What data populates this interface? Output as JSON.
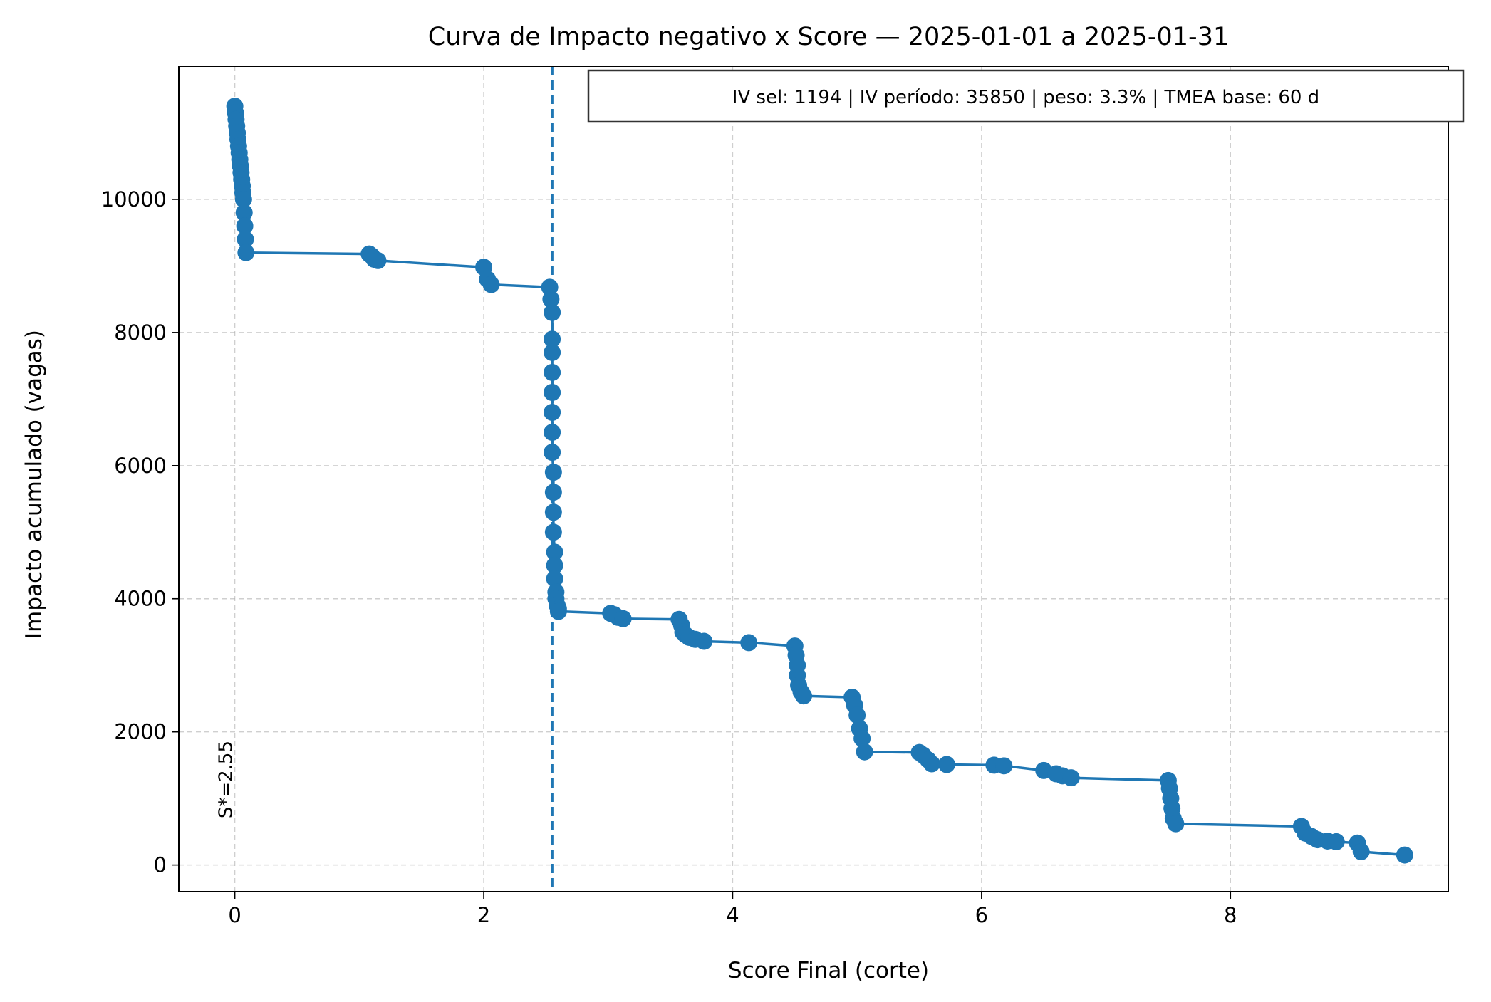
{
  "chart_data": {
    "type": "line",
    "title": "Curva de Impacto negativo x Score — 2025-01-01 a 2025-01-31",
    "xlabel": "Score Final (corte)",
    "ylabel": "Impacto acumulado (vagas)",
    "xlim": [
      -0.45,
      9.75
    ],
    "ylim": [
      -400,
      12000
    ],
    "xticks": [
      0,
      2,
      4,
      6,
      8
    ],
    "yticks": [
      0,
      2000,
      4000,
      6000,
      8000,
      10000
    ],
    "grid": true,
    "line_color": "#1f77b4",
    "threshold": {
      "x": 2.55,
      "label": "S*=2.55",
      "style": "dashed"
    },
    "annotation_box": "IV sel: 1194 | IV período: 35850 | peso: 3.3% | TMEA base: 60 d",
    "series": [
      {
        "x": [
          0.0,
          0.005,
          0.01,
          0.015,
          0.02,
          0.025,
          0.03,
          0.035,
          0.04,
          0.045,
          0.05,
          0.055,
          0.06,
          0.065,
          0.07,
          0.075,
          0.08,
          0.085,
          0.09,
          1.08,
          1.1,
          1.12,
          1.15,
          2.0,
          2.03,
          2.06,
          2.53,
          2.54,
          2.55,
          2.55,
          2.55,
          2.55,
          2.55,
          2.55,
          2.55,
          2.55,
          2.56,
          2.56,
          2.56,
          2.56,
          2.57,
          2.57,
          2.57,
          2.58,
          2.58,
          2.59,
          2.6,
          2.6,
          3.02,
          3.05,
          3.08,
          3.12,
          3.57,
          3.59,
          3.6,
          3.62,
          3.65,
          3.7,
          3.77,
          4.13,
          4.5,
          4.51,
          4.52,
          4.52,
          4.53,
          4.55,
          4.57,
          4.96,
          4.98,
          5.0,
          5.02,
          5.04,
          5.06,
          5.5,
          5.53,
          5.57,
          5.6,
          5.72,
          6.1,
          6.18,
          6.5,
          6.6,
          6.65,
          6.72,
          7.5,
          7.51,
          7.52,
          7.53,
          7.54,
          7.56,
          8.57,
          8.6,
          8.65,
          8.7,
          8.78,
          8.85,
          9.02,
          9.05,
          9.4
        ],
        "y": [
          11400,
          11300,
          11200,
          11100,
          11000,
          10900,
          10800,
          10700,
          10600,
          10500,
          10400,
          10300,
          10200,
          10100,
          10000,
          9800,
          9600,
          9400,
          9200,
          9180,
          9150,
          9100,
          9080,
          8980,
          8800,
          8720,
          8680,
          8500,
          8300,
          7900,
          7700,
          7400,
          7100,
          6800,
          6500,
          6200,
          5900,
          5600,
          5300,
          5000,
          4700,
          4500,
          4300,
          4100,
          4000,
          3900,
          3850,
          3810,
          3780,
          3760,
          3720,
          3700,
          3690,
          3600,
          3500,
          3460,
          3420,
          3390,
          3360,
          3340,
          3290,
          3150,
          3000,
          2850,
          2700,
          2600,
          2540,
          2520,
          2400,
          2250,
          2050,
          1900,
          1700,
          1690,
          1650,
          1580,
          1520,
          1510,
          1500,
          1490,
          1420,
          1370,
          1340,
          1310,
          1270,
          1150,
          1000,
          850,
          700,
          620,
          580,
          480,
          430,
          380,
          360,
          350,
          330,
          200,
          150
        ]
      }
    ]
  }
}
